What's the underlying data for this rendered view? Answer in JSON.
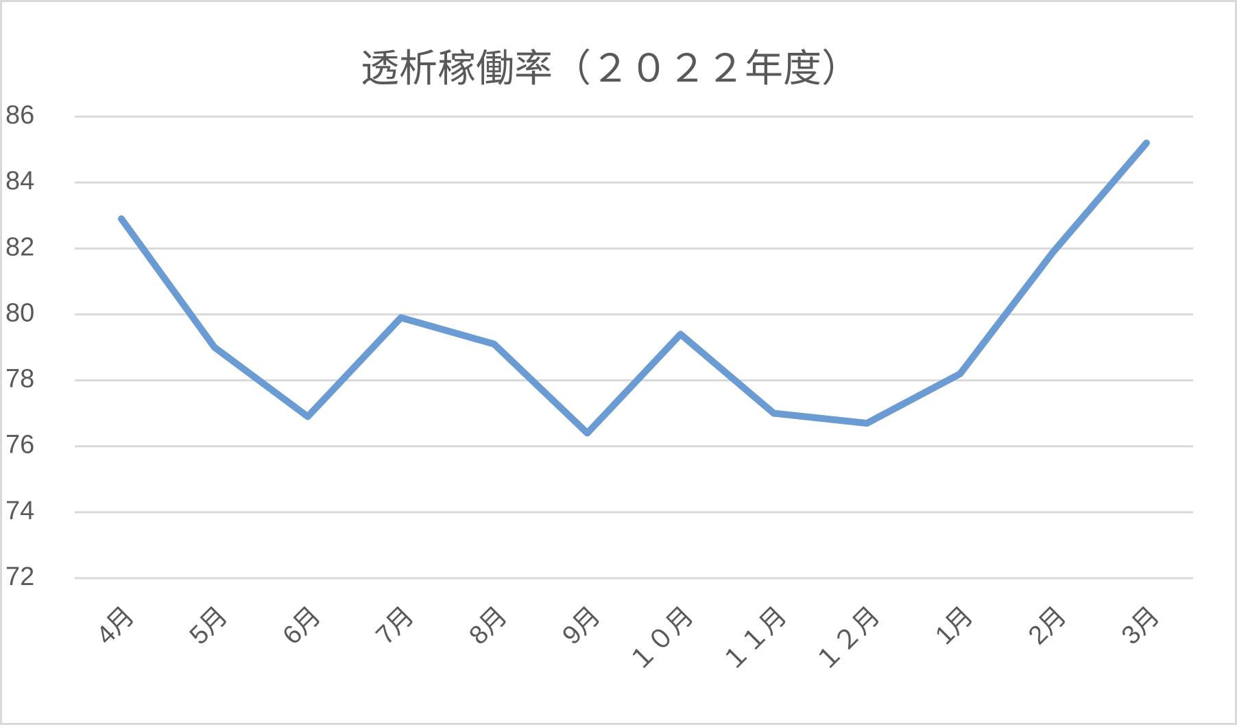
{
  "chart_data": {
    "type": "line",
    "title": "透析稼働率（２０２２年度）",
    "categories": [
      "4月",
      "5月",
      "6月",
      "7月",
      "8月",
      "9月",
      "１０月",
      "１１月",
      "１２月",
      "1月",
      "2月",
      "3月"
    ],
    "values": [
      82.9,
      79.0,
      76.9,
      79.9,
      79.1,
      76.4,
      79.4,
      77.0,
      76.7,
      78.2,
      81.9,
      85.2
    ],
    "color": "#6a9bd3",
    "ylim": [
      72,
      86
    ],
    "yticks": [
      72,
      74,
      76,
      78,
      80,
      82,
      84,
      86
    ],
    "grid": true
  }
}
